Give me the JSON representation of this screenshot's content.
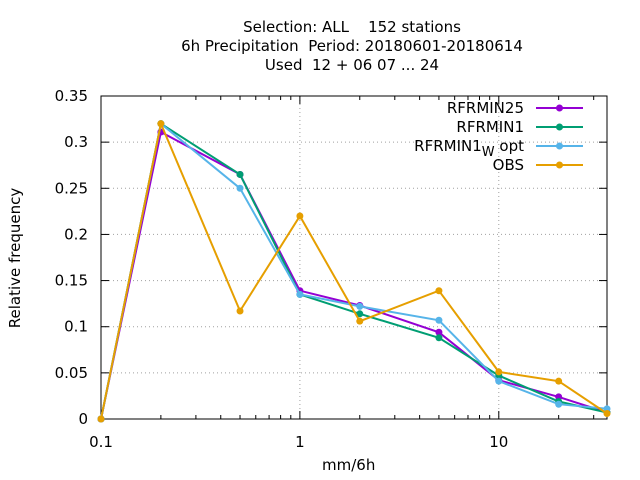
{
  "chart_data": {
    "type": "line",
    "title": [
      "Selection: ALL    152 stations",
      "6h Precipitation  Period: 20180601-20180614",
      "Used  12 + 06 07 ... 24"
    ],
    "xlabel": "mm/6h",
    "ylabel": "Relative frequency",
    "xscale": "log",
    "xlim": [
      0.1,
      35
    ],
    "ylim": [
      0,
      0.35
    ],
    "x_ticks": [
      {
        "v": 0.1,
        "label": "0.1"
      },
      {
        "v": 1,
        "label": "1"
      },
      {
        "v": 10,
        "label": "10"
      }
    ],
    "y_ticks": [
      {
        "v": 0,
        "label": "0"
      },
      {
        "v": 0.05,
        "label": "0.05"
      },
      {
        "v": 0.1,
        "label": "0.1"
      },
      {
        "v": 0.15,
        "label": "0.15"
      },
      {
        "v": 0.2,
        "label": "0.2"
      },
      {
        "v": 0.25,
        "label": "0.25"
      },
      {
        "v": 0.3,
        "label": "0.3"
      },
      {
        "v": 0.35,
        "label": "0.35"
      }
    ],
    "grid": true,
    "legend_position": "top-right",
    "x": [
      0.1,
      0.2,
      0.5,
      1,
      2,
      5,
      10,
      20,
      35
    ],
    "series": [
      {
        "name": "RFRMIN25",
        "color": "#9400d3",
        "values": [
          0,
          0.311,
          0.265,
          0.139,
          0.123,
          0.094,
          0.042,
          0.024,
          0.007
        ]
      },
      {
        "name": "RFRMIN1",
        "color": "#009e73",
        "values": [
          0,
          0.32,
          0.265,
          0.135,
          0.114,
          0.088,
          0.047,
          0.019,
          0.007
        ]
      },
      {
        "name": "RFRMIN1",
        "name_sub": "W",
        "name_suffix": " opt",
        "color": "#56b4e9",
        "values": [
          0,
          0.32,
          0.25,
          0.135,
          0.122,
          0.107,
          0.041,
          0.016,
          0.011
        ]
      },
      {
        "name": "OBS",
        "color": "#e69f00",
        "values": [
          0,
          0.32,
          0.117,
          0.22,
          0.106,
          0.139,
          0.051,
          0.041,
          0.006
        ]
      }
    ]
  }
}
